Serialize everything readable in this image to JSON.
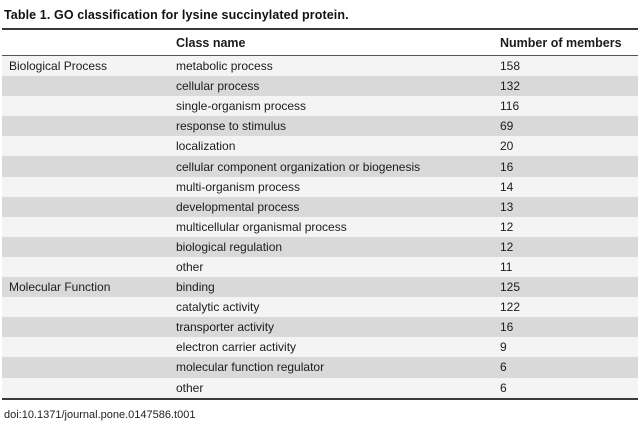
{
  "title": "Table 1.  GO classification for lysine succinylated protein.",
  "table": {
    "columns": {
      "category": "",
      "class_name": "Class name",
      "members": "Number of members"
    },
    "rows": [
      {
        "category": "Biological Process",
        "class_name": "metabolic process",
        "members": "158"
      },
      {
        "category": "",
        "class_name": "cellular process",
        "members": "132"
      },
      {
        "category": "",
        "class_name": "single-organism process",
        "members": "116"
      },
      {
        "category": "",
        "class_name": "response to stimulus",
        "members": "69"
      },
      {
        "category": "",
        "class_name": "localization",
        "members": "20"
      },
      {
        "category": "",
        "class_name": "cellular component organization or biogenesis",
        "members": "16"
      },
      {
        "category": "",
        "class_name": "multi-organism process",
        "members": "14"
      },
      {
        "category": "",
        "class_name": "developmental process",
        "members": "13"
      },
      {
        "category": "",
        "class_name": "multicellular organismal process",
        "members": "12"
      },
      {
        "category": "",
        "class_name": "biological regulation",
        "members": "12"
      },
      {
        "category": "",
        "class_name": "other",
        "members": "11"
      },
      {
        "category": "Molecular Function",
        "class_name": "binding",
        "members": "125"
      },
      {
        "category": "",
        "class_name": "catalytic activity",
        "members": "122"
      },
      {
        "category": "",
        "class_name": "transporter activity",
        "members": "16"
      },
      {
        "category": "",
        "class_name": "electron carrier activity",
        "members": "9"
      },
      {
        "category": "",
        "class_name": "molecular function regulator",
        "members": "6"
      },
      {
        "category": "",
        "class_name": "other",
        "members": "6"
      }
    ]
  },
  "footer": {
    "doi": "doi:10.1371/journal.pone.0147586.t001"
  },
  "colors": {
    "row_light": "#f4f4f4",
    "row_dark": "#d9d9d9",
    "rule_dark": "#3a3a3a",
    "rule_header": "#555555",
    "text": "#1c1c1c"
  }
}
